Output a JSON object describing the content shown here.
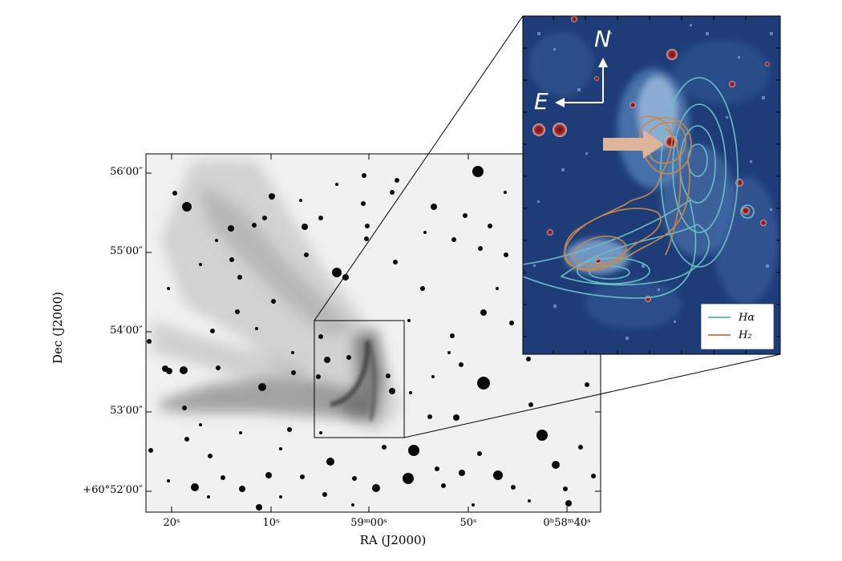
{
  "axes": {
    "xlabel": "RA (J2000)",
    "ylabel": "Dec (J2000)",
    "x_ticks": [
      "20ˢ",
      "10ˢ",
      "59ᵐ00ˢ",
      "50ˢ",
      "0ʰ58ᵐ40ˢ"
    ],
    "y_ticks": [
      "56′00″",
      "55′00″",
      "54′00″",
      "53′00″",
      "+60°52′00″"
    ]
  },
  "inset": {
    "north_label": "N",
    "east_label": "E",
    "legend": [
      {
        "label": "Hα",
        "color": "#6bbcc6"
      },
      {
        "label": "H₂",
        "color": "#c8884a"
      }
    ]
  },
  "colors": {
    "inset_background": "#1e3d78",
    "arrow": "#dcb59b",
    "star_core": "#7a0d10"
  }
}
